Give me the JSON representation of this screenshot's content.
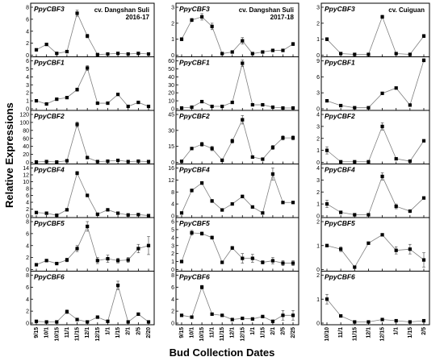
{
  "figure": {
    "ylabel": "Relative Expressions",
    "xlabel": "Bud Collection Dates"
  },
  "chart_data": [
    {
      "type": "line",
      "column": 0,
      "subtitle": "cv. Dangshan Suli\n2016-17",
      "x": [
        "9/15",
        "10/1",
        "10/15",
        "11/1",
        "11/15",
        "12/1",
        "12/15",
        "1/1",
        "1/15",
        "2/1",
        "2/5",
        "2/20"
      ],
      "panels": [
        {
          "gene": "PpyCBF3",
          "ylim": [
            0,
            8
          ],
          "yticks": [
            0,
            2,
            4,
            6,
            8
          ],
          "values": [
            0.9,
            1.8,
            0.3,
            0.6,
            7.0,
            3.2,
            0.1,
            0.2,
            0.3,
            0.2,
            0.3,
            0.2
          ],
          "errors": [
            0.2,
            0.2,
            0.1,
            0.1,
            0.5,
            0.3,
            0,
            0,
            0,
            0,
            0,
            0
          ]
        },
        {
          "gene": "PpyCBF1",
          "ylim": [
            0,
            6
          ],
          "yticks": [
            0,
            1,
            2,
            3,
            4,
            5,
            6
          ],
          "values": [
            1.0,
            0.6,
            1.2,
            1.4,
            2.4,
            5.1,
            0.7,
            0.7,
            1.8,
            0.3,
            0.8,
            0.3
          ],
          "errors": [
            0.1,
            0.1,
            0.1,
            0.1,
            0.2,
            0.3,
            0.1,
            0.1,
            0.1,
            0,
            0.1,
            0
          ]
        },
        {
          "gene": "PpyCBF2",
          "ylim": [
            0,
            120
          ],
          "yticks": [
            0,
            20,
            40,
            60,
            80,
            100,
            120
          ],
          "values": [
            1,
            2,
            1,
            4,
            95,
            12,
            2,
            3,
            5,
            2,
            3,
            2
          ],
          "errors": [
            0,
            0,
            0,
            0,
            6,
            2,
            0,
            0,
            0,
            0,
            0,
            0
          ]
        },
        {
          "gene": "PpyCBF4",
          "ylim": [
            0,
            14
          ],
          "yticks": [
            0,
            2,
            4,
            6,
            8,
            10,
            12,
            14
          ],
          "values": [
            1.0,
            0.8,
            0.2,
            1.8,
            12.5,
            6.0,
            0.5,
            1.8,
            0.8,
            0.3,
            0.4,
            0.1
          ],
          "errors": [
            0,
            0,
            0,
            0.2,
            0.5,
            0.4,
            0,
            0.2,
            0,
            0,
            0,
            0
          ]
        },
        {
          "gene": "PpyCBF5",
          "ylim": [
            0,
            8
          ],
          "yticks": [
            0,
            2,
            4,
            6,
            8
          ],
          "values": [
            0.8,
            1.5,
            1.0,
            1.6,
            3.5,
            7.2,
            1.5,
            1.8,
            1.5,
            1.6,
            3.5,
            4.0
          ],
          "errors": [
            0.1,
            0.2,
            0.1,
            0.3,
            0.5,
            0.8,
            0.5,
            0.6,
            0.4,
            0.4,
            0.7,
            1.5
          ]
        },
        {
          "gene": "PpyCBF6",
          "ylim": [
            0,
            8
          ],
          "yticks": [
            0,
            2,
            4,
            6,
            8
          ],
          "values": [
            0.3,
            0.2,
            0.2,
            1.9,
            0.6,
            0.2,
            1.0,
            0.3,
            6.3,
            0.2,
            1.5,
            0.2
          ],
          "errors": [
            0,
            0,
            0,
            0.3,
            0.1,
            0,
            0.2,
            0,
            0.7,
            0,
            0.2,
            0
          ]
        }
      ]
    },
    {
      "type": "line",
      "column": 1,
      "subtitle": "cv. Dangshan Suli\n2017-18",
      "x": [
        "9/15",
        "10/1",
        "10/15",
        "11/1",
        "11/15",
        "12/1",
        "12/15",
        "1/1",
        "1/15",
        "2/1",
        "2/5",
        "2/25"
      ],
      "panels": [
        {
          "gene": "PpyCBF3",
          "ylim": [
            0,
            3
          ],
          "yticks": [
            0,
            1,
            2,
            3
          ],
          "values": [
            1.0,
            2.2,
            2.4,
            1.8,
            0.1,
            0.2,
            0.9,
            0.1,
            0.2,
            0.3,
            0.3,
            0.7
          ],
          "errors": [
            0.1,
            0.1,
            0.2,
            0.2,
            0,
            0,
            0.2,
            0,
            0,
            0,
            0,
            0.1
          ]
        },
        {
          "gene": "PpyCBF1",
          "ylim": [
            0,
            60
          ],
          "yticks": [
            0,
            10,
            20,
            30,
            40,
            50,
            60
          ],
          "values": [
            1,
            2,
            9,
            3,
            3,
            8,
            57,
            5,
            5,
            2,
            1,
            1
          ],
          "errors": [
            0,
            0,
            1,
            0,
            0,
            1,
            4,
            1,
            1,
            0,
            0,
            0
          ]
        },
        {
          "gene": "PpyCBF2",
          "ylim": [
            0,
            45
          ],
          "yticks": [
            0,
            15,
            30,
            45
          ],
          "values": [
            1,
            13,
            17,
            13,
            2,
            20,
            40,
            5,
            3,
            14,
            23,
            23
          ],
          "errors": [
            0,
            1,
            2,
            2,
            0,
            2,
            4,
            1,
            0,
            2,
            2,
            2
          ]
        },
        {
          "gene": "PpyCBF4",
          "ylim": [
            0,
            16
          ],
          "yticks": [
            0,
            4,
            8,
            12,
            16
          ],
          "values": [
            1,
            8.5,
            11,
            5,
            2,
            4,
            6.5,
            3,
            1,
            14,
            4.5,
            4.5
          ],
          "errors": [
            0,
            0.5,
            0.5,
            0.5,
            0,
            0.4,
            0.5,
            0.3,
            0,
            2,
            0.4,
            0.4
          ]
        },
        {
          "gene": "PpyCBF5",
          "ylim": [
            0,
            6
          ],
          "yticks": [
            0,
            1,
            2,
            3,
            4,
            5,
            6
          ],
          "values": [
            1.0,
            4.6,
            4.5,
            4.0,
            0.9,
            2.7,
            1.4,
            1.4,
            0.9,
            1.1,
            0.8,
            0.8
          ],
          "errors": [
            0.1,
            0.3,
            0.2,
            0.2,
            0.1,
            0.2,
            0.6,
            0.5,
            0.2,
            0.4,
            0.3,
            0.3
          ]
        },
        {
          "gene": "PpyCBF6",
          "ylim": [
            0,
            8
          ],
          "yticks": [
            0,
            2,
            4,
            6,
            8
          ],
          "values": [
            1.3,
            1.0,
            6.0,
            1.5,
            1.3,
            0.6,
            0.8,
            0.7,
            1.1,
            0.3,
            1.3,
            1.3
          ],
          "errors": [
            0.1,
            0.1,
            0.3,
            0.2,
            0.1,
            0.1,
            0.2,
            0.2,
            0.2,
            0,
            0.8,
            0.8
          ]
        }
      ]
    },
    {
      "type": "line",
      "column": 2,
      "subtitle": "cv. Cuiguan",
      "x": [
        "10/10",
        "11/1",
        "11/15",
        "12/1",
        "12/15",
        "1/1",
        "1/15",
        "2/5"
      ],
      "panels": [
        {
          "gene": "PpyCBF3",
          "ylim": [
            0,
            3
          ],
          "yticks": [
            0,
            1,
            2,
            3
          ],
          "values": [
            1.0,
            0.1,
            0.05,
            0.05,
            2.4,
            0.1,
            0.05,
            1.2
          ],
          "errors": [
            0.1,
            0,
            0,
            0,
            0.1,
            0,
            0,
            0.1
          ]
        },
        {
          "gene": "PpyCBF1",
          "ylim": [
            0,
            9
          ],
          "yticks": [
            0,
            3,
            6,
            9
          ],
          "values": [
            1.5,
            0.6,
            0.2,
            0.2,
            2.9,
            3.9,
            0.7,
            9.1
          ],
          "errors": [
            0.1,
            0,
            0,
            0,
            0.2,
            0.2,
            0,
            0.3
          ]
        },
        {
          "gene": "PpyCBF2",
          "ylim": [
            0,
            4
          ],
          "yticks": [
            0,
            1,
            2,
            3,
            4
          ],
          "values": [
            1.0,
            0.05,
            0.05,
            0.05,
            3.0,
            0.3,
            0.1,
            1.8
          ],
          "errors": [
            0.3,
            0,
            0,
            0,
            0.3,
            0,
            0,
            0.1
          ]
        },
        {
          "gene": "PpyCBF4",
          "ylim": [
            0,
            4
          ],
          "yticks": [
            0,
            1,
            2,
            3,
            4
          ],
          "values": [
            1.0,
            0.3,
            0.1,
            0.1,
            3.3,
            0.8,
            0.4,
            1.5
          ],
          "errors": [
            0.3,
            0,
            0,
            0,
            0.3,
            0.2,
            0,
            0.1
          ]
        },
        {
          "gene": "PpyCBF5",
          "ylim": [
            0,
            2
          ],
          "yticks": [
            0,
            1,
            2
          ],
          "values": [
            1.0,
            0.85,
            0.1,
            1.1,
            1.45,
            0.8,
            0.85,
            0.4
          ],
          "errors": [
            0.05,
            0.1,
            0,
            0.05,
            0.05,
            0.15,
            0.2,
            0.3
          ]
        },
        {
          "gene": "PpyCBF6",
          "ylim": [
            0,
            2
          ],
          "yticks": [
            0,
            1,
            2
          ],
          "values": [
            1.0,
            0.3,
            0.05,
            0.05,
            0.15,
            0.1,
            0.05,
            0.1
          ],
          "errors": [
            0.2,
            0,
            0,
            0,
            0,
            0,
            0,
            0
          ]
        }
      ]
    }
  ]
}
